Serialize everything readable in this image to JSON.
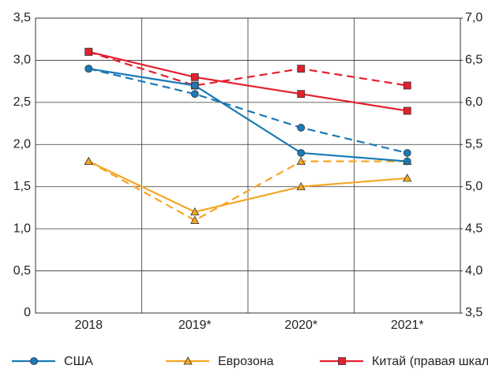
{
  "chart_data": {
    "type": "line",
    "categories": [
      "2018",
      "2019*",
      "2020*",
      "2021*"
    ],
    "series": [
      {
        "color": "#1a7ab5",
        "marker": "circle",
        "dashed": true,
        "values": [
          2.9,
          2.6,
          2.2,
          1.9
        ]
      },
      {
        "color": "#f5a623",
        "marker": "triangle",
        "dashed": true,
        "values": [
          1.8,
          1.1,
          1.8,
          1.8
        ]
      },
      {
        "color": "#e4202e",
        "marker": "square",
        "dashed": true,
        "axis": "y2",
        "values": [
          6.6,
          6.2,
          6.4,
          6.2
        ]
      },
      {
        "name": "США",
        "color": "#1a7ab5",
        "marker": "circle",
        "dashed": false,
        "values": [
          2.9,
          2.7,
          1.9,
          1.8
        ]
      },
      {
        "name": "Еврозона",
        "color": "#f5a623",
        "marker": "triangle",
        "dashed": false,
        "values": [
          1.8,
          1.2,
          1.5,
          1.6
        ]
      },
      {
        "name": "Китай (правая шкала)",
        "color": "#e4202e",
        "marker": "square",
        "dashed": false,
        "axis": "y2",
        "values": [
          6.6,
          6.3,
          6.1,
          5.9
        ]
      }
    ],
    "ylim": [
      0,
      3.5
    ],
    "yticks": [
      0,
      {
        "value": 0.5,
        "label": "0,5"
      },
      {
        "value": 1,
        "label": "1,0"
      },
      {
        "value": 1.5,
        "label": "1,5"
      },
      {
        "value": 2,
        "label": "2,0"
      },
      {
        "value": 2.5,
        "label": "2,5"
      },
      {
        "value": 3,
        "label": "3,0"
      },
      {
        "value": 3.5,
        "label": "3,5"
      }
    ],
    "y2lim": [
      3.5,
      7
    ],
    "y2ticks": [
      {
        "value": 3.5,
        "label": "3,5"
      },
      {
        "value": 4,
        "label": "4,0"
      },
      {
        "value": 4.5,
        "label": "4,5"
      },
      {
        "value": 5,
        "label": "5,0"
      },
      {
        "value": 5.5,
        "label": "5,5"
      },
      {
        "value": 6,
        "label": "6,0"
      },
      {
        "value": 6.5,
        "label": "6,5"
      },
      {
        "value": 7,
        "label": "7,0"
      }
    ],
    "grid": true
  }
}
